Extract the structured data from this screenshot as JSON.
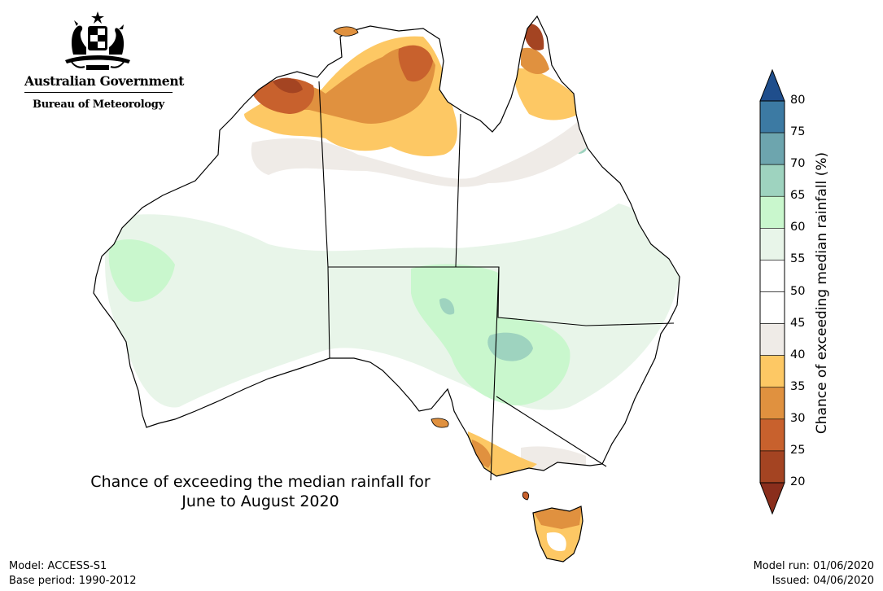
{
  "logo": {
    "line1": "Australian Government",
    "line2": "Bureau of Meteorology"
  },
  "map": {
    "title_line1": "Chance of exceeding the median rainfall for",
    "title_line2": "June to August 2020",
    "colors": {
      "ocean": "#ffffff",
      "outline": "#000000"
    }
  },
  "colorbar": {
    "title": "Chance of exceeding median rainfall (%)",
    "ticks": [
      "80",
      "75",
      "70",
      "65",
      "60",
      "55",
      "50",
      "45",
      "40",
      "35",
      "30",
      "25",
      "20"
    ],
    "bands": [
      {
        "range": "above 80",
        "color": "#1f4e8c"
      },
      {
        "range": "75-80",
        "color": "#3c7aa3"
      },
      {
        "range": "70-75",
        "color": "#6da5ae"
      },
      {
        "range": "65-70",
        "color": "#9ed3bf"
      },
      {
        "range": "60-65",
        "color": "#c9f7cd"
      },
      {
        "range": "55-60",
        "color": "#e8f5e9"
      },
      {
        "range": "50-55",
        "color": "#ffffff"
      },
      {
        "range": "45-50",
        "color": "#ffffff"
      },
      {
        "range": "40-45",
        "color": "#efebe7"
      },
      {
        "range": "35-40",
        "color": "#fdc864"
      },
      {
        "range": "30-35",
        "color": "#e0913f"
      },
      {
        "range": "25-30",
        "color": "#c8612d"
      },
      {
        "range": "20-25",
        "color": "#a44422"
      },
      {
        "range": "below 20",
        "color": "#8a2e1c"
      }
    ]
  },
  "footer": {
    "model": "Model: ACCESS-S1",
    "base_period": "Base period: 1990-2012",
    "model_run": "Model run: 01/06/2020",
    "issued": "Issued: 04/06/2020"
  }
}
